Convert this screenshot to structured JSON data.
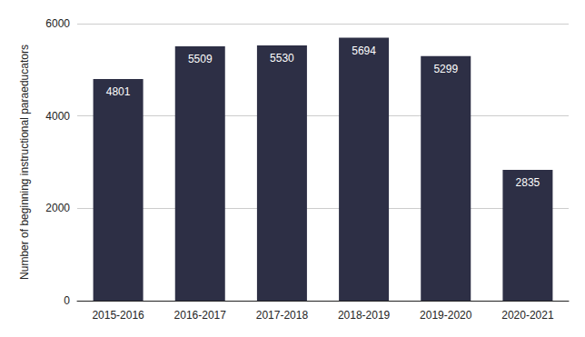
{
  "chart_data": {
    "type": "bar",
    "y_label": "Number of beginning instructional paraeducators",
    "categories": [
      "2015-2016",
      "2016-2017",
      "2017-2018",
      "2018-2019",
      "2019-2020",
      "2020-2021"
    ],
    "values": [
      4801,
      5509,
      5530,
      5694,
      5299,
      2835
    ],
    "color": "#2d2f45",
    "ylim": [
      0,
      6000
    ],
    "yticks": [
      0,
      2000,
      4000,
      6000
    ],
    "grid": true,
    "data_labels": true
  }
}
